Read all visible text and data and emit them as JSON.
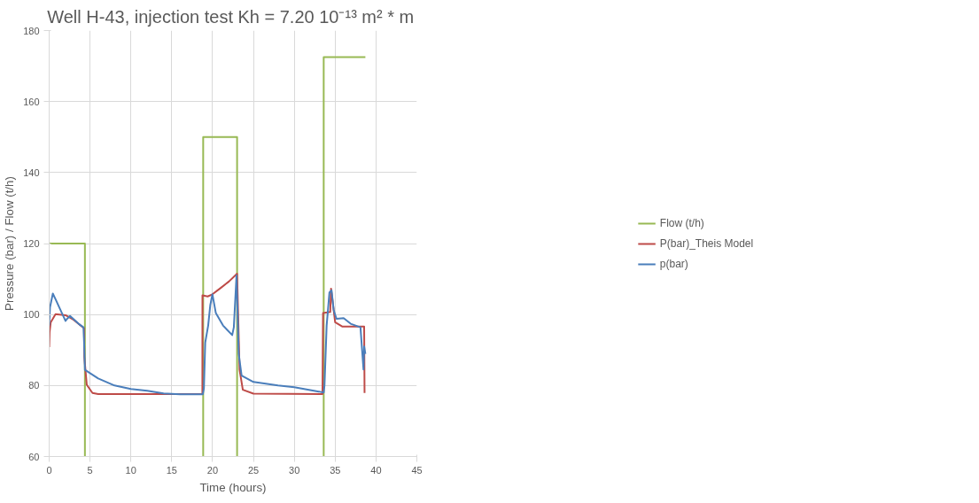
{
  "chart_data": {
    "type": "line",
    "title": "Well H-43, injection test  Kh = 7.20 10⁻¹³ m² * m",
    "xlabel": "Time (hours)",
    "ylabel": "Pressure (bar) / Flow (t/h)",
    "xlim": [
      0,
      45
    ],
    "xticks": [
      0,
      5,
      10,
      15,
      20,
      25,
      30,
      35,
      40,
      45
    ],
    "ylim": [
      60,
      180
    ],
    "yticks": [
      60,
      80,
      100,
      120,
      140,
      160,
      180
    ],
    "grid": true,
    "legend": "right",
    "marker": "none",
    "line_style": "solid",
    "series": [
      {
        "name": "p(bar)",
        "color": "#4a7ebb",
        "x": [
          0,
          0.1,
          0.45,
          0.78,
          1.3,
          2.0,
          2.2,
          2.55,
          3.6,
          4.2,
          4.27,
          4.375,
          5,
          6,
          8,
          10,
          12,
          14,
          16,
          18.8,
          18.94,
          19.1,
          19.46,
          19.72,
          19.98,
          20.4,
          21.28,
          22.4,
          22.6,
          22.93,
          23.2,
          23.55,
          25,
          28,
          30,
          33,
          33.6,
          33.7,
          33.96,
          34.3,
          34.56,
          34.82,
          35.16,
          36.04,
          36.9,
          38.1,
          38.47,
          38.55,
          38.7
        ],
        "values": [
          96.9,
          102,
          105.9,
          104.3,
          101.7,
          98.2,
          98.8,
          99.6,
          97.4,
          96.4,
          92.4,
          84.4,
          83.5,
          82,
          80,
          79,
          78.5,
          77.8,
          77.5,
          77.5,
          79.2,
          92.1,
          96.9,
          102.7,
          105.7,
          100.4,
          96.9,
          94.2,
          96.4,
          111,
          88.9,
          82.8,
          81,
          80,
          79.5,
          78.3,
          78,
          80.2,
          96.9,
          106.2,
          106.8,
          101.3,
          98.8,
          99,
          97.4,
          96.4,
          84.5,
          91,
          88.9
        ]
      },
      {
        "name": "P(bar)_Theis Model",
        "color": "#be4b48",
        "x": [
          0,
          0.05,
          0.19,
          0.78,
          2.0,
          3.0,
          4.27,
          4.3,
          4.6,
          5.3,
          6,
          18.75,
          18.76,
          19.4,
          19.98,
          21,
          22,
          23.0,
          23.3,
          23.7,
          25,
          33.45,
          33.52,
          34.4,
          34.5,
          35.0,
          35.9,
          38.55,
          38.6
        ],
        "values": [
          90.8,
          95,
          97.8,
          100.1,
          99.8,
          98.5,
          96.1,
          88.1,
          80.2,
          77.9,
          77.6,
          77.6,
          105.4,
          105.1,
          105.7,
          107.5,
          109.3,
          111.5,
          84.5,
          78.8,
          77.7,
          77.6,
          100.4,
          100.7,
          107.3,
          97.8,
          96.6,
          96.6,
          77.9
        ]
      },
      {
        "name": "Flow (t/h)",
        "color": "#98b954",
        "x": [
          0,
          4.375,
          4.375,
          null,
          18.85,
          18.85,
          23.0,
          23.0,
          null,
          33.6,
          33.6,
          38.7
        ],
        "values": [
          120,
          120,
          60,
          null,
          60,
          150,
          150,
          60,
          null,
          60,
          172.5,
          172.5
        ]
      }
    ]
  }
}
